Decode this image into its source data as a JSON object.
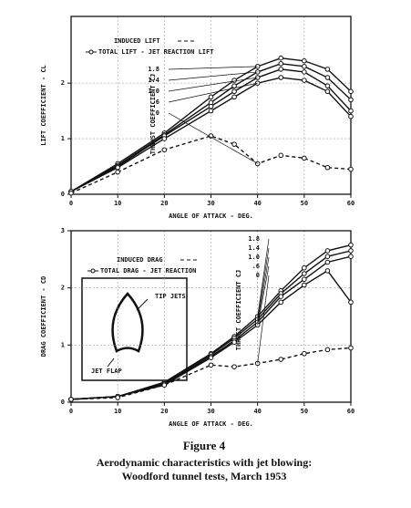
{
  "chart_data": [
    {
      "type": "line",
      "title": null,
      "x_label": "ANGLE OF ATTACK - DEG.",
      "y_label": "LIFT COEFFICIENT - CL",
      "annotations": [
        "INDUCED LIFT",
        "TOTAL LIFT - JET REACTION LIFT"
      ],
      "thrust_label": "THRUST COEFFICIENT CJ",
      "x": [
        0,
        10,
        20,
        30,
        35,
        40,
        45,
        50,
        55,
        60
      ],
      "series": [
        {
          "name": "1.8",
          "color": "#111111",
          "values": [
            0.05,
            0.55,
            1.1,
            1.75,
            2.05,
            2.3,
            2.45,
            2.4,
            2.25,
            1.85
          ]
        },
        {
          "name": "1.4",
          "color": "#111111",
          "values": [
            0.05,
            0.52,
            1.07,
            1.65,
            1.95,
            2.2,
            2.35,
            2.3,
            2.1,
            1.7
          ]
        },
        {
          "name": "1.0",
          "color": "#111111",
          "values": [
            0.05,
            0.5,
            1.05,
            1.58,
            1.85,
            2.1,
            2.25,
            2.2,
            1.95,
            1.5
          ]
        },
        {
          "name": ".6",
          "color": "#111111",
          "values": [
            0.05,
            0.48,
            1.0,
            1.5,
            1.75,
            2.0,
            2.1,
            2.05,
            1.85,
            1.4
          ]
        },
        {
          "name": "0",
          "color": "#111111",
          "values": [
            0.02,
            0.4,
            0.8,
            1.05,
            0.9,
            0.55,
            0.7,
            0.65,
            0.48,
            0.45
          ]
        }
      ],
      "xlim": [
        0,
        60
      ],
      "xticks": [
        0,
        10,
        20,
        30,
        40,
        50,
        60
      ],
      "ylim": [
        0,
        3.2
      ],
      "yticks": [
        0,
        1,
        2
      ],
      "grid": true
    },
    {
      "type": "line",
      "title": null,
      "x_label": "ANGLE OF ATTACK - DEG.",
      "y_label": "DRAG COEFFICIENT - CD",
      "annotations": [
        "INDUCED DRAG",
        "TOTAL DRAG - JET REACTION"
      ],
      "thrust_label": "THRUST COEFFICIENT CJ",
      "inset_labels": [
        "TIP JETS",
        "JET FLAP"
      ],
      "x": [
        0,
        10,
        20,
        30,
        35,
        40,
        45,
        50,
        55,
        60
      ],
      "series": [
        {
          "name": "1.8",
          "color": "#111111",
          "values": [
            0.05,
            0.1,
            0.35,
            0.85,
            1.15,
            1.5,
            1.95,
            2.35,
            2.65,
            2.75
          ]
        },
        {
          "name": "1.4",
          "color": "#111111",
          "values": [
            0.05,
            0.1,
            0.33,
            0.83,
            1.12,
            1.45,
            1.9,
            2.25,
            2.55,
            2.65
          ]
        },
        {
          "name": "1.0",
          "color": "#111111",
          "values": [
            0.05,
            0.1,
            0.32,
            0.8,
            1.08,
            1.4,
            1.85,
            2.15,
            2.45,
            2.55
          ]
        },
        {
          "name": ".6",
          "color": "#111111",
          "values": [
            0.05,
            0.1,
            0.3,
            0.78,
            1.05,
            1.35,
            1.75,
            2.05,
            2.3,
            1.75
          ]
        },
        {
          "name": "0",
          "color": "#111111",
          "values": [
            0.05,
            0.08,
            0.3,
            0.65,
            0.62,
            0.68,
            0.75,
            0.85,
            0.92,
            0.95
          ]
        }
      ],
      "xlim": [
        0,
        60
      ],
      "xticks": [
        0,
        10,
        20,
        30,
        40,
        50,
        60
      ],
      "ylim": [
        0,
        3
      ],
      "yticks": [
        0,
        1,
        2,
        3
      ],
      "grid": true
    }
  ],
  "caption": {
    "figure": "Figure 4",
    "lines": [
      "Aerodynamic characteristics with jet blowing:",
      "Woodford tunnel tests, March 1953"
    ]
  }
}
